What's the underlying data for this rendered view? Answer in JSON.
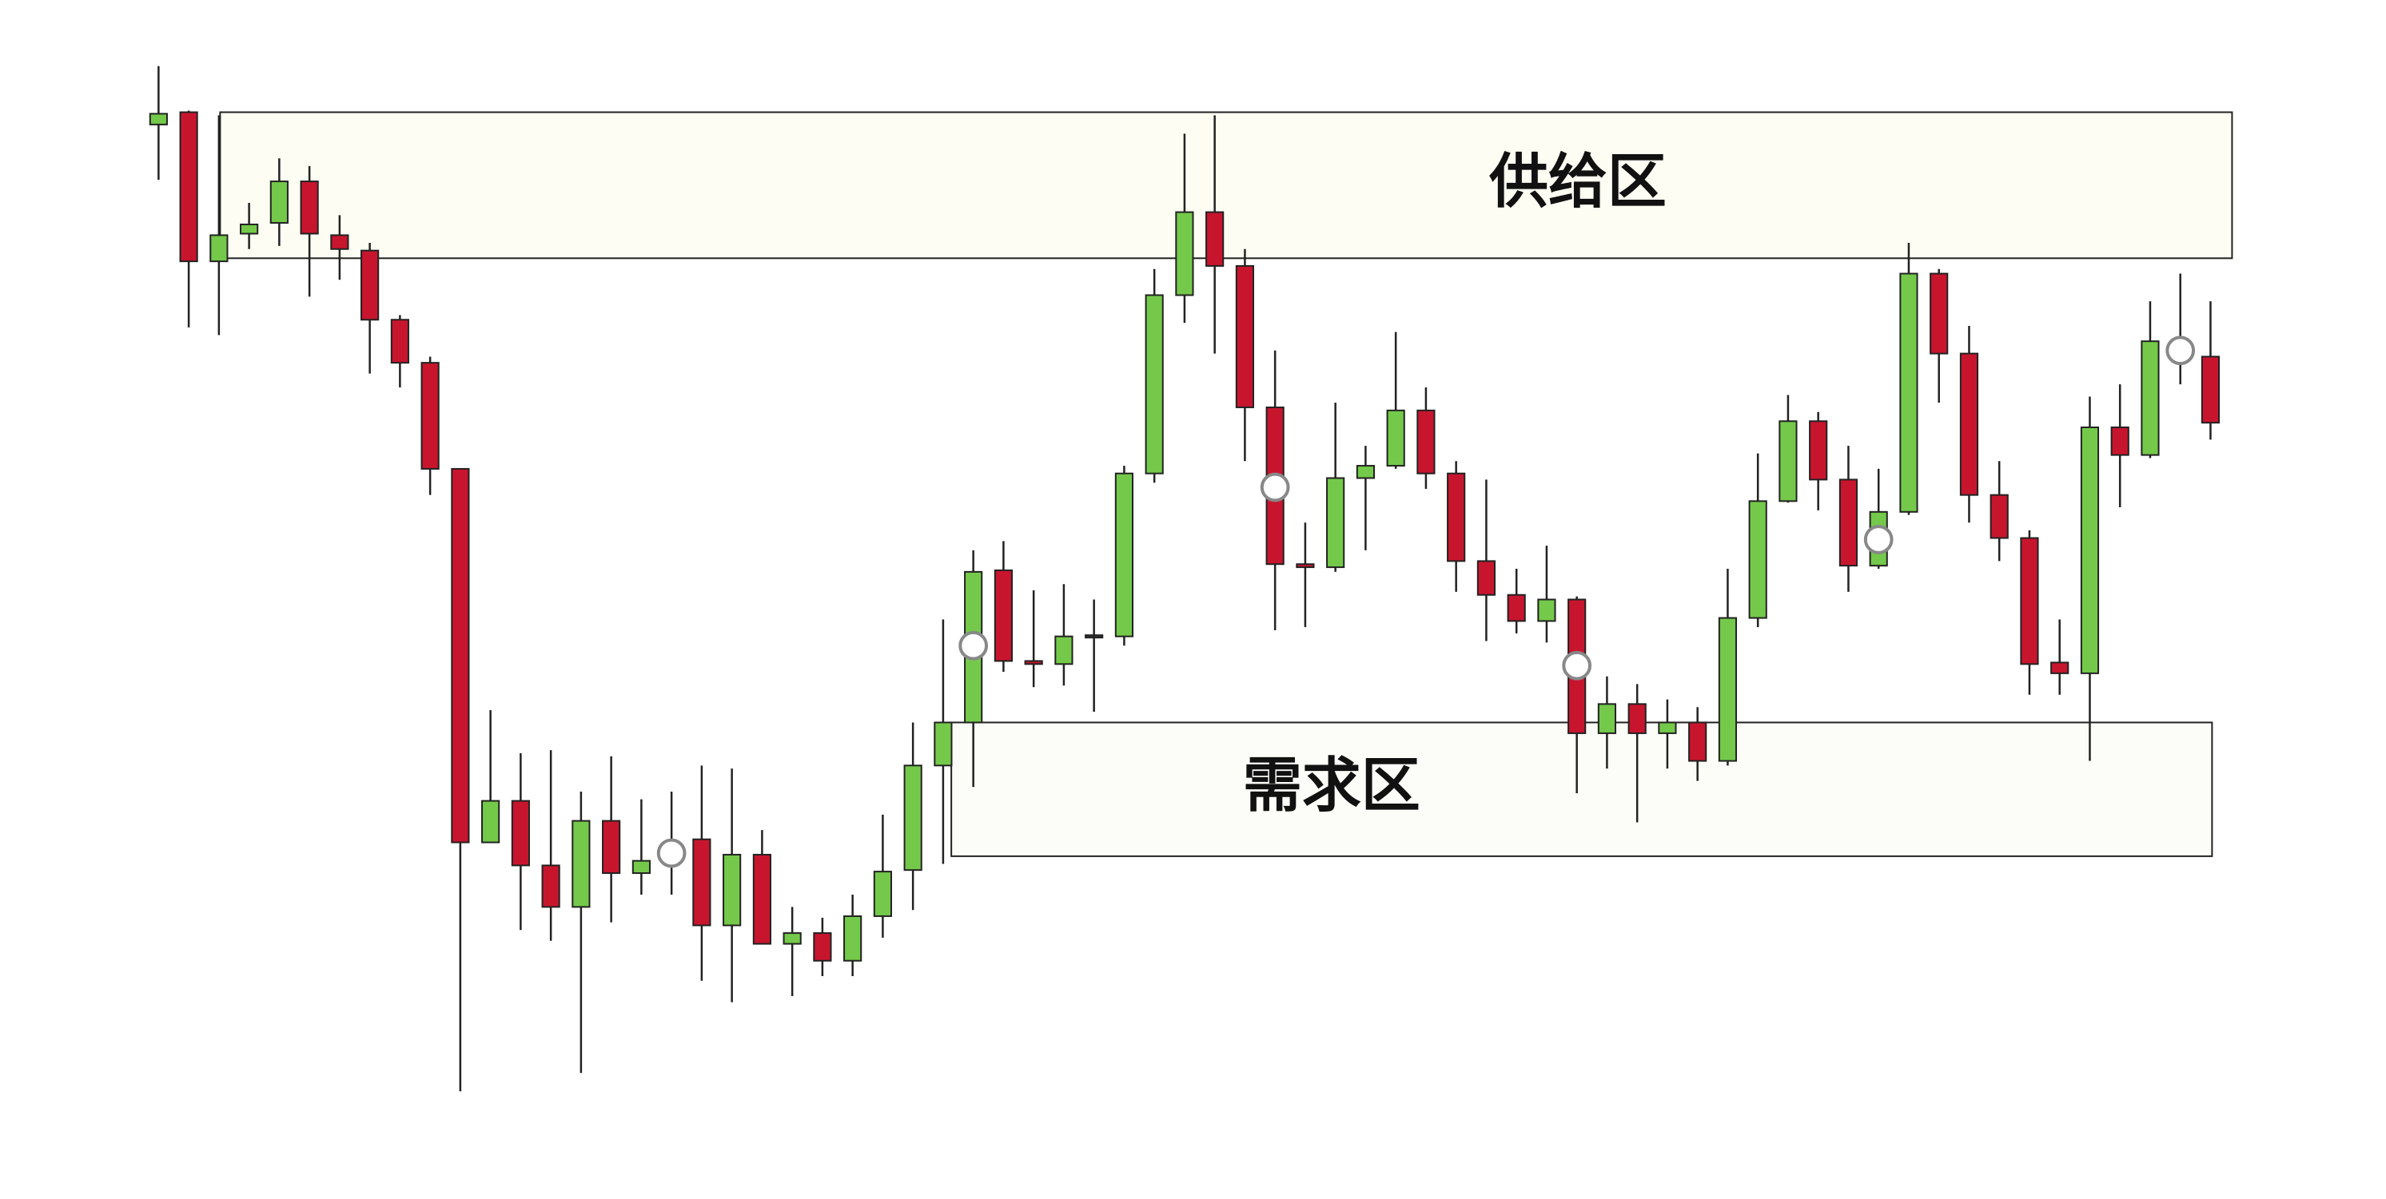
{
  "chart_data": {
    "type": "candlestick",
    "open": [
      639,
      647,
      550,
      568,
      575,
      602,
      567,
      557,
      512,
      484,
      415,
      172,
      199,
      157,
      130,
      186,
      152,
      165,
      174,
      118,
      164,
      106,
      113,
      95,
      124,
      154,
      222,
      250,
      349,
      290,
      288,
      306,
      306,
      412,
      528,
      582,
      547,
      455,
      353,
      351,
      409,
      417,
      453,
      412,
      355,
      333,
      316,
      330,
      243,
      262,
      243,
      250,
      225,
      318,
      394,
      446,
      408,
      352,
      387,
      542,
      490,
      398,
      370,
      289,
      282,
      442,
      424,
      492,
      488
    ],
    "high": [
      677,
      648,
      645,
      588,
      617,
      612,
      580,
      562,
      515,
      488,
      415,
      258,
      230,
      232,
      205,
      228,
      200,
      205,
      222,
      220,
      180,
      130,
      123,
      138,
      190,
      250,
      317,
      362,
      368,
      336,
      340,
      330,
      417,
      545,
      633,
      645,
      558,
      492,
      380,
      458,
      430,
      504,
      468,
      420,
      408,
      350,
      365,
      332,
      280,
      275,
      265,
      260,
      350,
      425,
      463,
      452,
      430,
      415,
      562,
      545,
      508,
      420,
      375,
      317,
      462,
      470,
      524,
      542,
      524
    ],
    "low": [
      603,
      507,
      502,
      558,
      560,
      527,
      538,
      477,
      468,
      398,
      10,
      172,
      115,
      108,
      22,
      120,
      138,
      138,
      82,
      68,
      106,
      72,
      85,
      85,
      110,
      128,
      158,
      208,
      283,
      273,
      274,
      257,
      300,
      406,
      510,
      490,
      420,
      310,
      312,
      348,
      362,
      415,
      402,
      335,
      303,
      308,
      302,
      204,
      220,
      185,
      220,
      212,
      222,
      312,
      393,
      388,
      335,
      350,
      385,
      458,
      380,
      355,
      268,
      268,
      225,
      390,
      422,
      470,
      434
    ],
    "close": [
      646,
      550,
      567,
      574,
      602,
      568,
      558,
      512,
      484,
      415,
      172,
      199,
      157,
      130,
      186,
      152,
      160,
      165,
      118,
      164,
      106,
      113,
      95,
      124,
      153,
      222,
      250,
      348,
      290,
      288,
      306,
      306,
      412,
      528,
      582,
      547,
      455,
      353,
      351,
      409,
      417,
      453,
      412,
      355,
      333,
      316,
      330,
      243,
      262,
      243,
      250,
      225,
      318,
      394,
      446,
      408,
      352,
      387,
      542,
      490,
      398,
      370,
      288,
      282,
      442,
      424,
      498,
      492,
      445
    ],
    "markers": [
      null,
      null,
      null,
      null,
      null,
      null,
      null,
      null,
      null,
      null,
      null,
      null,
      null,
      null,
      null,
      null,
      null,
      165,
      null,
      null,
      null,
      null,
      null,
      null,
      null,
      null,
      null,
      300,
      null,
      null,
      null,
      null,
      null,
      null,
      null,
      null,
      null,
      403,
      null,
      null,
      null,
      null,
      null,
      null,
      null,
      null,
      null,
      287,
      null,
      null,
      null,
      null,
      null,
      null,
      null,
      null,
      null,
      369,
      null,
      null,
      null,
      null,
      null,
      null,
      null,
      null,
      null,
      492,
      null
    ],
    "up_color": "#74c94a",
    "down_color": "#c8152e",
    "zones": [
      {
        "label": "供给区",
        "high": 647,
        "low": 552
      },
      {
        "label": "需求区",
        "high": 250,
        "low": 163
      }
    ],
    "ylim": [
      -60,
      720
    ]
  }
}
